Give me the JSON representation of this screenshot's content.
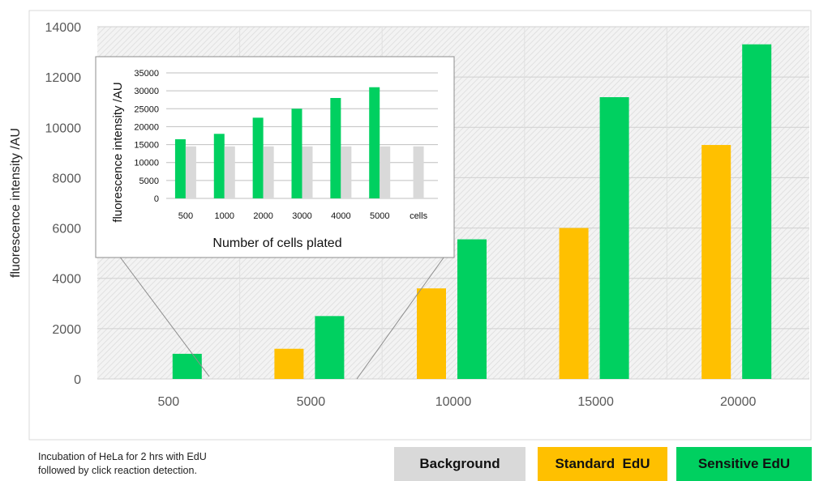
{
  "chart_data": [
    {
      "type": "bar",
      "ylabel": "fluorescence intensity /AU",
      "xlabel": "",
      "ylim": [
        0,
        14000
      ],
      "yticks": [
        "0",
        "2000",
        "4000",
        "6000",
        "8000",
        "10000",
        "12000",
        "14000"
      ],
      "categories": [
        "500",
        "5000",
        "10000",
        "15000",
        "20000"
      ],
      "series": [
        {
          "name": "Background",
          "color": "#d9d9d9",
          "values": [
            0,
            0,
            0,
            0,
            0
          ]
        },
        {
          "name": "Standard EdU",
          "color": "#ffc000",
          "values": [
            0,
            1200,
            3600,
            6000,
            9300
          ]
        },
        {
          "name": "Sensitive EdU",
          "color": "#00d060",
          "values": [
            1000,
            2500,
            5550,
            11200,
            13300
          ]
        }
      ],
      "grid": true,
      "legend": "bottom-right"
    },
    {
      "type": "bar",
      "ylabel": "fluorescence intensity /AU",
      "xlabel": "Number of cells plated",
      "ylim": [
        0,
        35000
      ],
      "yticks": [
        "0",
        "5000",
        "10000",
        "15000",
        "20000",
        "25000",
        "30000",
        "35000"
      ],
      "categories": [
        "500",
        "1000",
        "2000",
        "3000",
        "4000",
        "5000",
        "cells"
      ],
      "series": [
        {
          "name": "Sensitive EdU",
          "color": "#00d060",
          "values": [
            16500,
            18000,
            22500,
            25000,
            28000,
            31000,
            0
          ]
        },
        {
          "name": "Background",
          "color": "#d9d9d9",
          "values": [
            14500,
            14500,
            14500,
            14500,
            14500,
            14500,
            14500
          ]
        }
      ]
    }
  ],
  "caption": {
    "line1": "Incubation of HeLa for 2 hrs with EdU",
    "line2": "followed by click reaction detection."
  },
  "legend": [
    {
      "label": "Background",
      "color": "#d9d9d9"
    },
    {
      "label": "Standard  EdU",
      "color": "#ffc000"
    },
    {
      "label": "Sensitive EdU",
      "color": "#00d060"
    }
  ]
}
